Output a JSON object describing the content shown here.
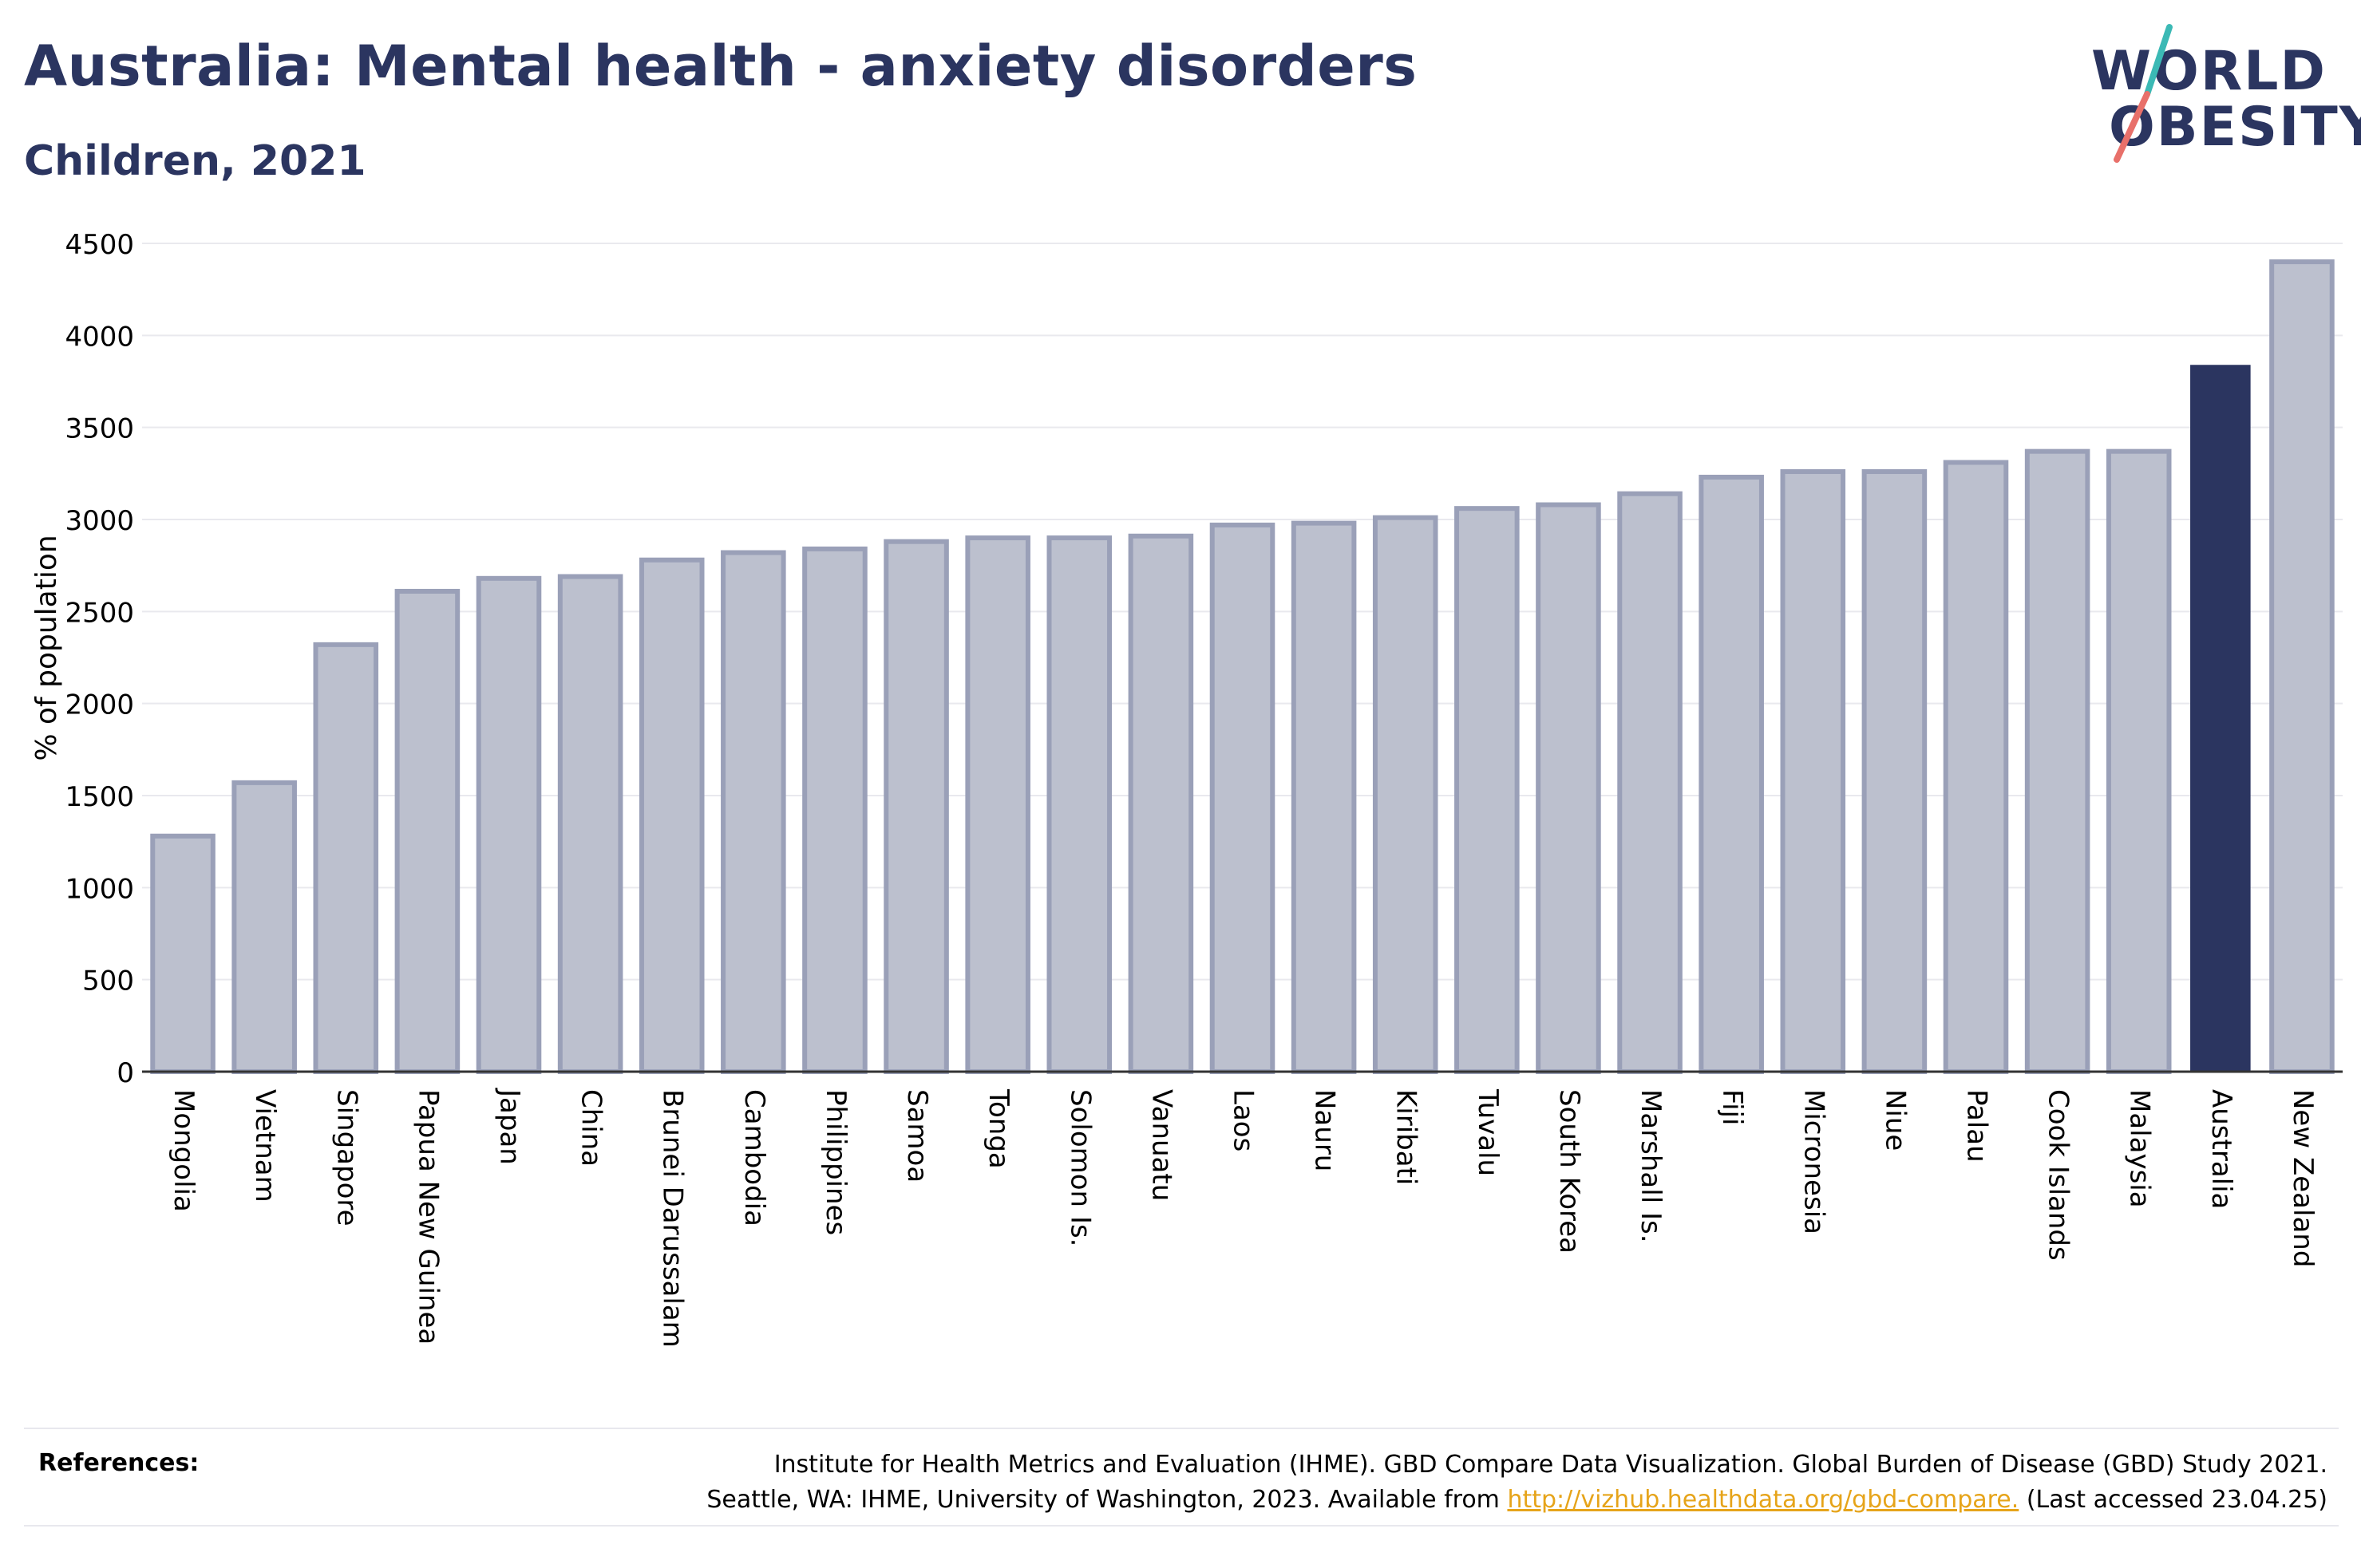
{
  "header": {
    "title": "Australia: Mental health - anxiety disorders",
    "subtitle": "Children, 2021"
  },
  "logo": {
    "line1": "WORLD",
    "line2": "OBESITY",
    "accent_colors": [
      "#3bb9b5",
      "#e8706a"
    ]
  },
  "chart_data": {
    "type": "bar",
    "ylabel": "% of population",
    "xlabel": "",
    "ylim": [
      0,
      4500
    ],
    "yticks": [
      0,
      500,
      1000,
      1500,
      2000,
      2500,
      3000,
      3500,
      4000,
      4500
    ],
    "grid": true,
    "highlight": "Australia",
    "colors": {
      "bar": "#bcc0ce",
      "bar_edge": "#9aa0b8",
      "highlight": "#2b3560"
    },
    "categories": [
      "Mongolia",
      "Vietnam",
      "Singapore",
      "Papua New Guinea",
      "Japan",
      "China",
      "Brunei Darussalam",
      "Cambodia",
      "Philippines",
      "Samoa",
      "Tonga",
      "Solomon Is.",
      "Vanuatu",
      "Laos",
      "Nauru",
      "Kiribati",
      "Tuvalu",
      "South Korea",
      "Marshall Is.",
      "Fiji",
      "Micronesia",
      "Niue",
      "Palau",
      "Cook Islands",
      "Malaysia",
      "Australia",
      "New Zealand"
    ],
    "values": [
      1280,
      1570,
      2320,
      2610,
      2680,
      2690,
      2780,
      2820,
      2840,
      2880,
      2900,
      2900,
      2910,
      2970,
      2980,
      3010,
      3060,
      3080,
      3140,
      3230,
      3260,
      3260,
      3310,
      3370,
      3370,
      3840,
      4400
    ]
  },
  "references": {
    "label": "References:",
    "line1": "Institute for Health Metrics and Evaluation (IHME). GBD Compare Data Visualization. Global Burden of Disease (GBD) Study 2021.",
    "line2_prefix": "Seattle, WA: IHME, University of Washington, 2023. Available from ",
    "link_text": "http://vizhub.healthdata.org/gbd-compare.",
    "line2_suffix": " (Last accessed 23.04.25)"
  }
}
